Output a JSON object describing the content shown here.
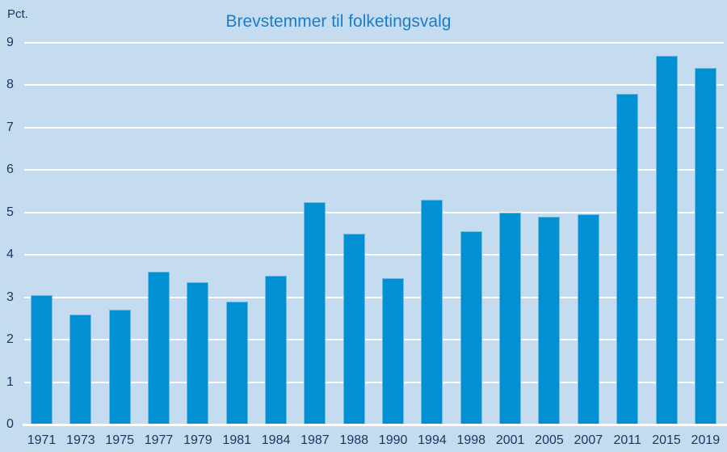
{
  "chart_data": {
    "type": "bar",
    "title": "Brevstemmer til folketingsvalg",
    "ylabel": "Pct.",
    "xlabel": "",
    "categories": [
      "1971",
      "1973",
      "1975",
      "1977",
      "1979",
      "1981",
      "1984",
      "1987",
      "1988",
      "1990",
      "1994",
      "1998",
      "2001",
      "2005",
      "2007",
      "2011",
      "2015",
      "2019"
    ],
    "values": [
      3.05,
      2.6,
      2.7,
      3.6,
      3.35,
      2.9,
      3.5,
      5.25,
      4.5,
      3.45,
      5.3,
      4.55,
      5.0,
      4.9,
      4.95,
      7.8,
      8.7,
      8.4
    ],
    "ylim": [
      0,
      9
    ],
    "y_ticks": [
      0,
      1,
      2,
      3,
      4,
      5,
      6,
      7,
      8,
      9
    ],
    "grid": true,
    "legend": null,
    "colors": {
      "bg": "#c5dcf0",
      "bar": "#0090d3",
      "barEdge": "#6fbbe2",
      "grid": "#ffffff",
      "title": "#1e7cc2",
      "text": "#17375e"
    }
  }
}
